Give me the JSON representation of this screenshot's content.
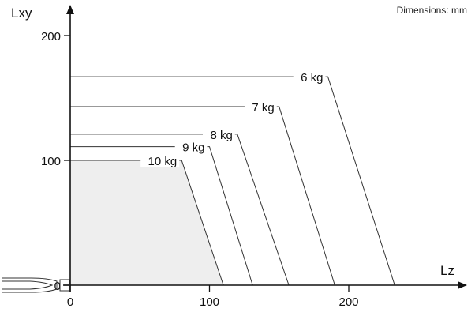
{
  "note": "Dimensions: mm",
  "chart_data": {
    "type": "line",
    "title": "",
    "xlabel": "Lz",
    "ylabel": "Lxy",
    "xlim": [
      0,
      260
    ],
    "ylim": [
      0,
      215
    ],
    "xticks": [
      0,
      100,
      200
    ],
    "yticks": [
      0,
      100,
      200
    ],
    "grid": false,
    "series": [
      {
        "name": "10 kg",
        "points": [
          [
            0,
            100
          ],
          [
            80,
            100
          ],
          [
            110,
            0
          ]
        ]
      },
      {
        "name": "9 kg",
        "points": [
          [
            0,
            111
          ],
          [
            100,
            111
          ],
          [
            131,
            0
          ]
        ]
      },
      {
        "name": "8 kg",
        "points": [
          [
            0,
            121
          ],
          [
            120,
            121
          ],
          [
            157,
            0
          ]
        ]
      },
      {
        "name": "7 kg",
        "points": [
          [
            0,
            143
          ],
          [
            150,
            143
          ],
          [
            190,
            0
          ]
        ]
      },
      {
        "name": "6 kg",
        "points": [
          [
            0,
            167
          ],
          [
            185,
            167
          ],
          [
            233,
            0
          ]
        ]
      }
    ],
    "shaded_series": "10 kg"
  }
}
